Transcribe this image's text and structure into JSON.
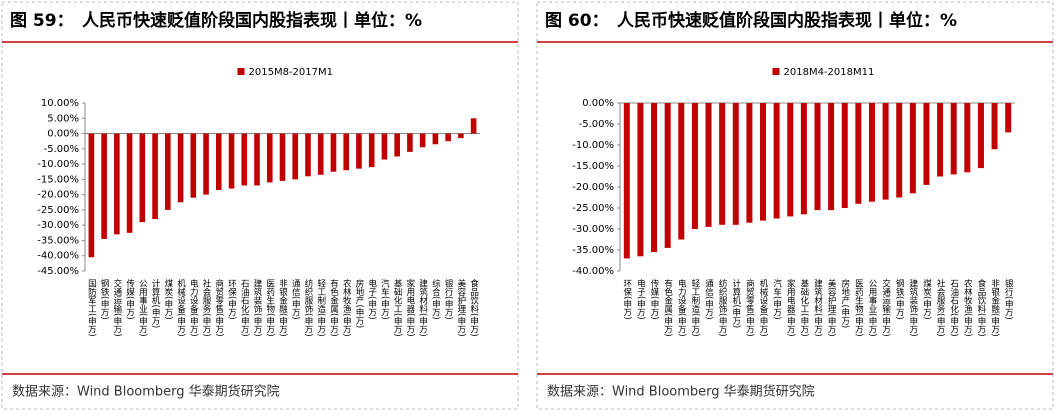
{
  "panels": [
    {
      "figure": "图 59：",
      "heading": "人民币快速贬值阶段国内股指表现丨单位：%",
      "source": "数据来源：Wind Bloomberg 华泰期货研究院"
    },
    {
      "figure": "图 60：",
      "heading": "人民币快速贬值阶段国内股指表现丨单位：%",
      "source": "数据来源：Wind Bloomberg 华泰期货研究院"
    }
  ],
  "chart_data": [
    {
      "type": "bar",
      "categories": [
        "国防军工(申万)",
        "钢铁(申万)",
        "交通运输(申万)",
        "传媒(申万)",
        "公用事业(申万)",
        "计算机(申万)",
        "煤炭(申万)",
        "机械设备(申万)",
        "电力设备(申万)",
        "社会服务(申万)",
        "商贸零售(申万)",
        "环保(申万)",
        "石油石化(申万)",
        "建筑装饰(申万)",
        "医药生物(申万)",
        "非银金融(申万)",
        "通信(申万)",
        "纺织服饰(申万)",
        "轻工制造(申万)",
        "有色金属(申万)",
        "农林牧渔(申万)",
        "房地产(申万)",
        "电子(申万)",
        "汽车(申万)",
        "基础化工(申万)",
        "家用电器(申万)",
        "建筑材料(申万)",
        "综合(申万)",
        "银行(申万)",
        "美容护理(申万)",
        "食品饮料(申万)"
      ],
      "series": [
        {
          "name": "2015M8-2017M1",
          "color": "#c00000",
          "values": [
            -40.5,
            -34.5,
            -33,
            -32.5,
            -29,
            -28,
            -25,
            -22.5,
            -21,
            -20,
            -18.5,
            -18,
            -17,
            -17,
            -16,
            -15.5,
            -15,
            -14,
            -13.5,
            -12.5,
            -12,
            -11.5,
            -11,
            -8.5,
            -7.5,
            -6,
            -4.5,
            -3.5,
            -2.5,
            -1.5,
            5
          ]
        }
      ],
      "ylim": [
        -45,
        10
      ],
      "yticks": [
        {
          "value": 10,
          "label": "10.00%"
        },
        {
          "value": 5,
          "label": "5.00%"
        },
        {
          "value": 0,
          "label": "0.00%"
        },
        {
          "value": -5,
          "label": "-5.00%"
        },
        {
          "value": -10,
          "label": "-10.00%"
        },
        {
          "value": -15,
          "label": "-15.00%"
        },
        {
          "value": -20,
          "label": "-20.00%"
        },
        {
          "value": -25,
          "label": "-25.00%"
        },
        {
          "value": -30,
          "label": "-30.00%"
        },
        {
          "value": -35,
          "label": "-35.00%"
        },
        {
          "value": -40,
          "label": "-40.00%"
        },
        {
          "value": -45,
          "label": "-45.00%"
        }
      ],
      "legend": "top"
    },
    {
      "type": "bar",
      "categories": [
        "环保(申万)",
        "电子(申万)",
        "传媒(申万)",
        "有色金属(申万)",
        "电力设备(申万)",
        "轻工制造(申万)",
        "通信(申万)",
        "纺织服饰(申万)",
        "计算机(申万)",
        "商贸零售(申万)",
        "机械设备(申万)",
        "汽车(申万)",
        "家用电器(申万)",
        "基础化工(申万)",
        "建筑材料(申万)",
        "美容护理(申万)",
        "房地产(申万)",
        "医药生物(申万)",
        "公用事业(申万)",
        "交通运输(申万)",
        "钢铁(申万)",
        "建筑装饰(申万)",
        "煤炭(申万)",
        "社会服务(申万)",
        "石油石化(申万)",
        "农林牧渔(申万)",
        "食品饮料(申万)",
        "非银金融(申万)",
        "银行(申万)"
      ],
      "series": [
        {
          "name": "2018M4-2018M11",
          "color": "#c00000",
          "values": [
            -37,
            -36.5,
            -35.5,
            -34.5,
            -32.5,
            -30,
            -29.5,
            -29,
            -29,
            -28.5,
            -28,
            -27.5,
            -27,
            -26.5,
            -25.5,
            -25.5,
            -25,
            -24,
            -23.5,
            -23,
            -22.5,
            -21.5,
            -19.5,
            -17.5,
            -17,
            -16.5,
            -15.5,
            -11,
            -7
          ]
        }
      ],
      "ylim": [
        -40,
        0
      ],
      "yticks": [
        {
          "value": 0,
          "label": "0.00%"
        },
        {
          "value": -5,
          "label": "-5.00%"
        },
        {
          "value": -10,
          "label": "-10.00%"
        },
        {
          "value": -15,
          "label": "-15.00%"
        },
        {
          "value": -20,
          "label": "-20.00%"
        },
        {
          "value": -25,
          "label": "-25.00%"
        },
        {
          "value": -30,
          "label": "-30.00%"
        },
        {
          "value": -35,
          "label": "-35.00%"
        },
        {
          "value": -40,
          "label": "-40.00%"
        }
      ],
      "legend": "top"
    }
  ]
}
